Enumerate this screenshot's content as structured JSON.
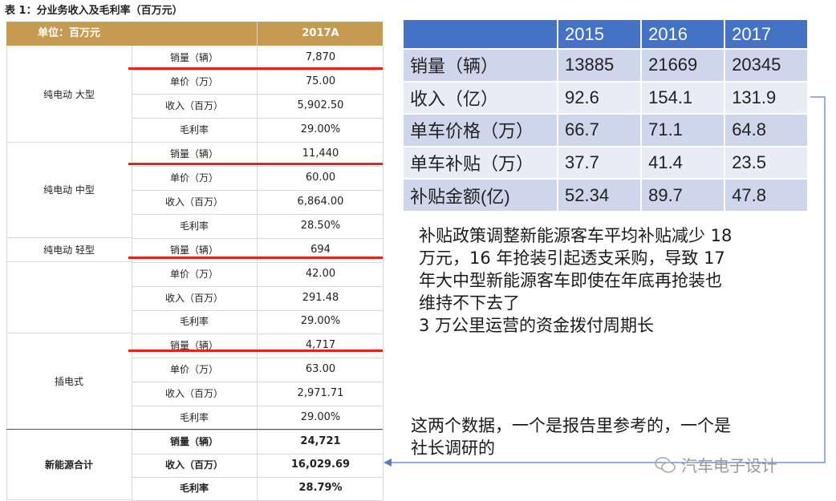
{
  "caption": "表 1：分业务收入及毛利率（百万元）",
  "left_table": {
    "header_unit": "单位：百万元",
    "header_year": "2017A",
    "groups": [
      {
        "name": "纯电动 大型",
        "rows": [
          {
            "metric": "销量（辆）",
            "value": "7,870"
          },
          {
            "metric": "单价（万）",
            "value": "75.00"
          },
          {
            "metric": "收入（百万）",
            "value": "5,902.50"
          },
          {
            "metric": "毛利率",
            "value": "29.00%"
          }
        ]
      },
      {
        "name": "纯电动 中型",
        "rows": [
          {
            "metric": "销量（辆）",
            "value": "11,440"
          },
          {
            "metric": "单价（万）",
            "value": "60.00"
          },
          {
            "metric": "收入（百万）",
            "value": "6,864.00"
          },
          {
            "metric": "毛利率",
            "value": "28.50%"
          }
        ]
      },
      {
        "name": "纯电动 轻型",
        "rows": [
          {
            "metric": "销量（辆）",
            "value": "694"
          },
          {
            "metric": "单价（万）",
            "value": "42.00"
          },
          {
            "metric": "收入（百万）",
            "value": "291.48"
          },
          {
            "metric": "毛利率",
            "value": "29.00%"
          }
        ]
      },
      {
        "name": "插电式",
        "rows": [
          {
            "metric": "销量（辆）",
            "value": "4,717"
          },
          {
            "metric": "单价（万）",
            "value": "63.00"
          },
          {
            "metric": "收入（百万）",
            "value": "2,971.71"
          },
          {
            "metric": "毛利率",
            "value": "29.00%"
          }
        ]
      },
      {
        "name": "新能源合计",
        "rows": [
          {
            "metric": "销量（辆）",
            "value": "24,721"
          },
          {
            "metric": "收入（百万）",
            "value": "16,029.69"
          },
          {
            "metric": "毛利率",
            "value": "28.79%"
          }
        ]
      }
    ]
  },
  "right_table": {
    "years": [
      "2015",
      "2016",
      "2017"
    ],
    "rows": [
      {
        "label": "销量（辆）",
        "values": [
          "13885",
          "21669",
          "20345"
        ]
      },
      {
        "label": "收入（亿）",
        "values": [
          "92.6",
          "154.1",
          "131.9"
        ]
      },
      {
        "label": "单车价格（万）",
        "values": [
          "66.7",
          "71.1",
          "64.8"
        ]
      },
      {
        "label": "单车补贴（万）",
        "values": [
          "37.7",
          "41.4",
          "23.5"
        ]
      },
      {
        "label": "补贴金额(亿)",
        "values": [
          "52.34",
          "89.7",
          "47.8"
        ]
      }
    ]
  },
  "note": {
    "line1": "补贴政策调整新能源客车平均补贴减少 18",
    "line2": "万元，16 年抢装引起透支采购，导致 17",
    "line3": "年大中型新能源客车即使在年底再抢装也",
    "line4": "维持不下去了",
    "line5": "3 万公里运营的资金拨付周期长"
  },
  "note2": {
    "line1": "这两个数据，一个是报告里参考的，一个是",
    "line2": "社长调研的"
  },
  "watermark": "汽车电子设计",
  "colors": {
    "header_gold": "#c79a52",
    "header_blue": "#4472c4",
    "red_line": "#e0241b"
  }
}
